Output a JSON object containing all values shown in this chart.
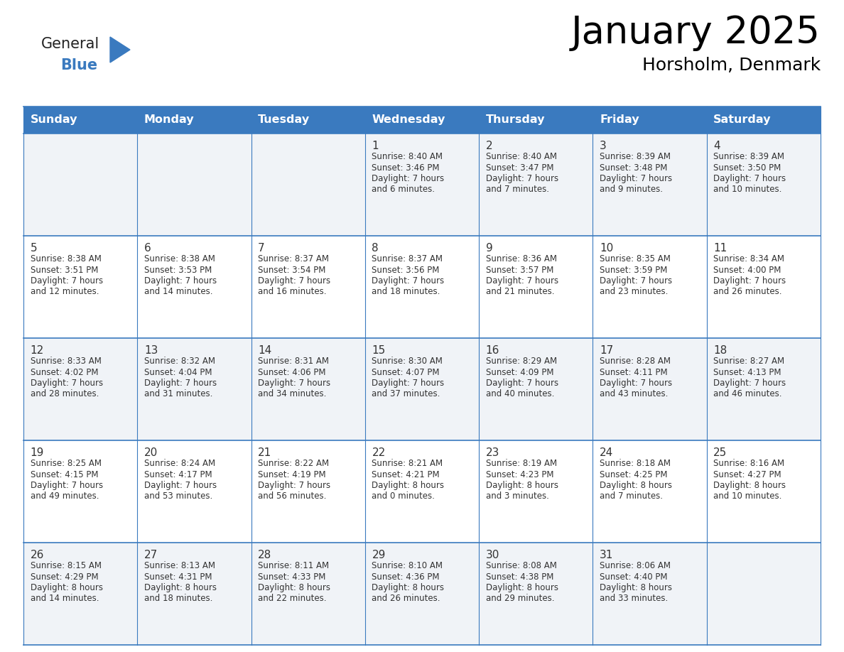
{
  "title": "January 2025",
  "subtitle": "Horsholm, Denmark",
  "header_color": "#3a7abf",
  "header_text_color": "#ffffff",
  "row_colors": [
    "#f0f3f7",
    "#ffffff",
    "#f0f3f7",
    "#ffffff",
    "#f0f3f7"
  ],
  "day_names": [
    "Sunday",
    "Monday",
    "Tuesday",
    "Wednesday",
    "Thursday",
    "Friday",
    "Saturday"
  ],
  "days": [
    {
      "day": 1,
      "col": 3,
      "row": 0,
      "sunrise": "8:40 AM",
      "sunset": "3:46 PM",
      "daylight_line1": "7 hours",
      "daylight_line2": "and 6 minutes."
    },
    {
      "day": 2,
      "col": 4,
      "row": 0,
      "sunrise": "8:40 AM",
      "sunset": "3:47 PM",
      "daylight_line1": "7 hours",
      "daylight_line2": "and 7 minutes."
    },
    {
      "day": 3,
      "col": 5,
      "row": 0,
      "sunrise": "8:39 AM",
      "sunset": "3:48 PM",
      "daylight_line1": "7 hours",
      "daylight_line2": "and 9 minutes."
    },
    {
      "day": 4,
      "col": 6,
      "row": 0,
      "sunrise": "8:39 AM",
      "sunset": "3:50 PM",
      "daylight_line1": "7 hours",
      "daylight_line2": "and 10 minutes."
    },
    {
      "day": 5,
      "col": 0,
      "row": 1,
      "sunrise": "8:38 AM",
      "sunset": "3:51 PM",
      "daylight_line1": "7 hours",
      "daylight_line2": "and 12 minutes."
    },
    {
      "day": 6,
      "col": 1,
      "row": 1,
      "sunrise": "8:38 AM",
      "sunset": "3:53 PM",
      "daylight_line1": "7 hours",
      "daylight_line2": "and 14 minutes."
    },
    {
      "day": 7,
      "col": 2,
      "row": 1,
      "sunrise": "8:37 AM",
      "sunset": "3:54 PM",
      "daylight_line1": "7 hours",
      "daylight_line2": "and 16 minutes."
    },
    {
      "day": 8,
      "col": 3,
      "row": 1,
      "sunrise": "8:37 AM",
      "sunset": "3:56 PM",
      "daylight_line1": "7 hours",
      "daylight_line2": "and 18 minutes."
    },
    {
      "day": 9,
      "col": 4,
      "row": 1,
      "sunrise": "8:36 AM",
      "sunset": "3:57 PM",
      "daylight_line1": "7 hours",
      "daylight_line2": "and 21 minutes."
    },
    {
      "day": 10,
      "col": 5,
      "row": 1,
      "sunrise": "8:35 AM",
      "sunset": "3:59 PM",
      "daylight_line1": "7 hours",
      "daylight_line2": "and 23 minutes."
    },
    {
      "day": 11,
      "col": 6,
      "row": 1,
      "sunrise": "8:34 AM",
      "sunset": "4:00 PM",
      "daylight_line1": "7 hours",
      "daylight_line2": "and 26 minutes."
    },
    {
      "day": 12,
      "col": 0,
      "row": 2,
      "sunrise": "8:33 AM",
      "sunset": "4:02 PM",
      "daylight_line1": "7 hours",
      "daylight_line2": "and 28 minutes."
    },
    {
      "day": 13,
      "col": 1,
      "row": 2,
      "sunrise": "8:32 AM",
      "sunset": "4:04 PM",
      "daylight_line1": "7 hours",
      "daylight_line2": "and 31 minutes."
    },
    {
      "day": 14,
      "col": 2,
      "row": 2,
      "sunrise": "8:31 AM",
      "sunset": "4:06 PM",
      "daylight_line1": "7 hours",
      "daylight_line2": "and 34 minutes."
    },
    {
      "day": 15,
      "col": 3,
      "row": 2,
      "sunrise": "8:30 AM",
      "sunset": "4:07 PM",
      "daylight_line1": "7 hours",
      "daylight_line2": "and 37 minutes."
    },
    {
      "day": 16,
      "col": 4,
      "row": 2,
      "sunrise": "8:29 AM",
      "sunset": "4:09 PM",
      "daylight_line1": "7 hours",
      "daylight_line2": "and 40 minutes."
    },
    {
      "day": 17,
      "col": 5,
      "row": 2,
      "sunrise": "8:28 AM",
      "sunset": "4:11 PM",
      "daylight_line1": "7 hours",
      "daylight_line2": "and 43 minutes."
    },
    {
      "day": 18,
      "col": 6,
      "row": 2,
      "sunrise": "8:27 AM",
      "sunset": "4:13 PM",
      "daylight_line1": "7 hours",
      "daylight_line2": "and 46 minutes."
    },
    {
      "day": 19,
      "col": 0,
      "row": 3,
      "sunrise": "8:25 AM",
      "sunset": "4:15 PM",
      "daylight_line1": "7 hours",
      "daylight_line2": "and 49 minutes."
    },
    {
      "day": 20,
      "col": 1,
      "row": 3,
      "sunrise": "8:24 AM",
      "sunset": "4:17 PM",
      "daylight_line1": "7 hours",
      "daylight_line2": "and 53 minutes."
    },
    {
      "day": 21,
      "col": 2,
      "row": 3,
      "sunrise": "8:22 AM",
      "sunset": "4:19 PM",
      "daylight_line1": "7 hours",
      "daylight_line2": "and 56 minutes."
    },
    {
      "day": 22,
      "col": 3,
      "row": 3,
      "sunrise": "8:21 AM",
      "sunset": "4:21 PM",
      "daylight_line1": "8 hours",
      "daylight_line2": "and 0 minutes."
    },
    {
      "day": 23,
      "col": 4,
      "row": 3,
      "sunrise": "8:19 AM",
      "sunset": "4:23 PM",
      "daylight_line1": "8 hours",
      "daylight_line2": "and 3 minutes."
    },
    {
      "day": 24,
      "col": 5,
      "row": 3,
      "sunrise": "8:18 AM",
      "sunset": "4:25 PM",
      "daylight_line1": "8 hours",
      "daylight_line2": "and 7 minutes."
    },
    {
      "day": 25,
      "col": 6,
      "row": 3,
      "sunrise": "8:16 AM",
      "sunset": "4:27 PM",
      "daylight_line1": "8 hours",
      "daylight_line2": "and 10 minutes."
    },
    {
      "day": 26,
      "col": 0,
      "row": 4,
      "sunrise": "8:15 AM",
      "sunset": "4:29 PM",
      "daylight_line1": "8 hours",
      "daylight_line2": "and 14 minutes."
    },
    {
      "day": 27,
      "col": 1,
      "row": 4,
      "sunrise": "8:13 AM",
      "sunset": "4:31 PM",
      "daylight_line1": "8 hours",
      "daylight_line2": "and 18 minutes."
    },
    {
      "day": 28,
      "col": 2,
      "row": 4,
      "sunrise": "8:11 AM",
      "sunset": "4:33 PM",
      "daylight_line1": "8 hours",
      "daylight_line2": "and 22 minutes."
    },
    {
      "day": 29,
      "col": 3,
      "row": 4,
      "sunrise": "8:10 AM",
      "sunset": "4:36 PM",
      "daylight_line1": "8 hours",
      "daylight_line2": "and 26 minutes."
    },
    {
      "day": 30,
      "col": 4,
      "row": 4,
      "sunrise": "8:08 AM",
      "sunset": "4:38 PM",
      "daylight_line1": "8 hours",
      "daylight_line2": "and 29 minutes."
    },
    {
      "day": 31,
      "col": 5,
      "row": 4,
      "sunrise": "8:06 AM",
      "sunset": "4:40 PM",
      "daylight_line1": "8 hours",
      "daylight_line2": "and 33 minutes."
    }
  ],
  "logo_general_color": "#222222",
  "logo_blue_color": "#3a7abf",
  "grid_line_color": "#3a7abf",
  "text_color": "#333333",
  "title_fontsize": 38,
  "subtitle_fontsize": 18,
  "header_fontsize": 11.5,
  "day_number_fontsize": 11,
  "cell_text_fontsize": 8.5
}
